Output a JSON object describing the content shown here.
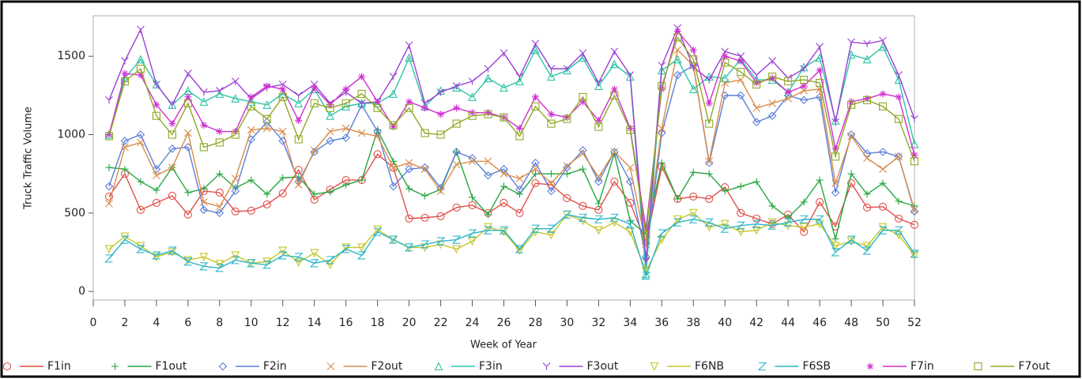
{
  "chart_data": {
    "type": "line",
    "x_label": "Week of Year",
    "y_label": "Truck Traffic Volume",
    "xlim": [
      0,
      52
    ],
    "xticks": [
      0,
      2,
      4,
      6,
      8,
      10,
      12,
      14,
      16,
      18,
      20,
      22,
      24,
      26,
      28,
      30,
      32,
      34,
      36,
      38,
      40,
      42,
      44,
      46,
      48,
      50,
      52
    ],
    "ylim": [
      -55,
      1758
    ],
    "yticks": [
      0,
      500,
      1000,
      1500
    ],
    "x": [
      1,
      2,
      3,
      4,
      5,
      6,
      7,
      8,
      9,
      10,
      11,
      12,
      13,
      14,
      15,
      16,
      17,
      18,
      19,
      20,
      21,
      22,
      23,
      24,
      25,
      26,
      27,
      28,
      29,
      30,
      31,
      32,
      33,
      34,
      35,
      36,
      37,
      38,
      39,
      40,
      41,
      42,
      43,
      44,
      45,
      46,
      47,
      48,
      49,
      50,
      51,
      52
    ],
    "legend": "bottom",
    "series": [
      {
        "name": "F1in",
        "color": "#e0504a",
        "marker": "circle",
        "values": [
          605,
          750,
          520,
          565,
          610,
          490,
          640,
          630,
          510,
          515,
          555,
          625,
          775,
          585,
          650,
          710,
          710,
          875,
          790,
          465,
          470,
          480,
          535,
          550,
          500,
          565,
          500,
          690,
          680,
          595,
          545,
          520,
          700,
          565,
          310,
          795,
          590,
          605,
          590,
          665,
          500,
          465,
          430,
          490,
          380,
          570,
          415,
          690,
          535,
          540,
          465,
          425
        ]
      },
      {
        "name": "F1out",
        "color": "#27a63f",
        "marker": "plus",
        "values": [
          790,
          780,
          700,
          645,
          790,
          630,
          655,
          750,
          660,
          710,
          620,
          725,
          730,
          620,
          635,
          680,
          710,
          1030,
          830,
          655,
          610,
          650,
          890,
          600,
          490,
          670,
          620,
          750,
          750,
          750,
          780,
          560,
          880,
          450,
          365,
          820,
          590,
          760,
          750,
          640,
          670,
          700,
          545,
          470,
          570,
          710,
          335,
          750,
          620,
          690,
          575,
          545
        ]
      },
      {
        "name": "F2in",
        "color": "#5b7fd8",
        "marker": "diamond",
        "values": [
          670,
          960,
          1000,
          780,
          910,
          920,
          520,
          500,
          640,
          970,
          1080,
          960,
          700,
          890,
          960,
          980,
          1190,
          1020,
          670,
          780,
          790,
          660,
          890,
          850,
          740,
          780,
          650,
          820,
          640,
          790,
          900,
          700,
          890,
          700,
          220,
          1010,
          1380,
          1440,
          820,
          1250,
          1250,
          1080,
          1120,
          1250,
          1220,
          1240,
          630,
          1000,
          880,
          890,
          860,
          510
        ]
      },
      {
        "name": "F2out",
        "color": "#d98c4a",
        "marker": "x",
        "values": [
          560,
          920,
          950,
          740,
          790,
          1010,
          570,
          540,
          720,
          1030,
          1040,
          1020,
          680,
          900,
          1020,
          1040,
          1010,
          990,
          790,
          820,
          780,
          640,
          810,
          830,
          830,
          750,
          720,
          780,
          690,
          800,
          880,
          730,
          890,
          790,
          300,
          1040,
          1540,
          1440,
          830,
          1330,
          1350,
          1170,
          1200,
          1230,
          1280,
          1290,
          690,
          990,
          850,
          780,
          860,
          520
        ]
      },
      {
        "name": "F3in",
        "color": "#2ec4a5",
        "marker": "triangle",
        "values": [
          1000,
          1360,
          1480,
          1320,
          1190,
          1280,
          1210,
          1260,
          1230,
          1210,
          1190,
          1260,
          1200,
          1290,
          1120,
          1180,
          1200,
          1200,
          1260,
          1490,
          1180,
          1280,
          1300,
          1240,
          1360,
          1300,
          1340,
          1540,
          1370,
          1410,
          1490,
          1310,
          1450,
          1370,
          110,
          1410,
          1480,
          1290,
          1370,
          1360,
          1480,
          1350,
          1350,
          1270,
          1430,
          1490,
          1090,
          1510,
          1480,
          1560,
          1350,
          940
        ]
      },
      {
        "name": "F3out",
        "color": "#9b3fd6",
        "marker": "y",
        "values": [
          1220,
          1470,
          1670,
          1320,
          1190,
          1390,
          1270,
          1280,
          1340,
          1230,
          1300,
          1320,
          1250,
          1320,
          1200,
          1270,
          1200,
          1210,
          1370,
          1570,
          1200,
          1270,
          1310,
          1340,
          1420,
          1520,
          1370,
          1580,
          1420,
          1420,
          1520,
          1330,
          1530,
          1380,
          190,
          1440,
          1680,
          1430,
          1350,
          1530,
          1500,
          1380,
          1470,
          1360,
          1420,
          1560,
          1080,
          1590,
          1580,
          1600,
          1380,
          1100
        ]
      },
      {
        "name": "F6NB",
        "color": "#c6c62a",
        "marker": "tridown",
        "values": [
          270,
          350,
          290,
          220,
          250,
          200,
          220,
          175,
          230,
          180,
          190,
          260,
          185,
          245,
          170,
          280,
          280,
          395,
          330,
          280,
          280,
          300,
          270,
          320,
          410,
          380,
          260,
          380,
          360,
          490,
          450,
          390,
          440,
          380,
          130,
          330,
          460,
          500,
          410,
          430,
          380,
          390,
          440,
          420,
          410,
          430,
          290,
          320,
          290,
          410,
          360,
          230
        ]
      },
      {
        "name": "F6SB",
        "color": "#2ab5c9",
        "marker": "z",
        "values": [
          210,
          330,
          270,
          230,
          260,
          190,
          160,
          150,
          200,
          180,
          170,
          230,
          220,
          180,
          200,
          270,
          230,
          380,
          330,
          280,
          300,
          320,
          330,
          370,
          390,
          390,
          270,
          400,
          400,
          490,
          470,
          460,
          470,
          430,
          100,
          370,
          440,
          460,
          440,
          400,
          420,
          430,
          420,
          440,
          460,
          460,
          250,
          330,
          260,
          390,
          390,
          240
        ]
      },
      {
        "name": "F7in",
        "color": "#d12fd1",
        "marker": "star",
        "values": [
          1000,
          1390,
          1380,
          1190,
          1070,
          1240,
          1060,
          1020,
          1020,
          1240,
          1310,
          1290,
          1090,
          1300,
          1190,
          1290,
          1370,
          1210,
          1050,
          1210,
          1170,
          1130,
          1170,
          1140,
          1140,
          1110,
          1040,
          1240,
          1130,
          1110,
          1210,
          1090,
          1290,
          1040,
          400,
          1290,
          1660,
          1540,
          1200,
          1500,
          1470,
          1330,
          1360,
          1270,
          1310,
          1410,
          910,
          1210,
          1230,
          1260,
          1240,
          870
        ]
      },
      {
        "name": "F7out",
        "color": "#8fa825",
        "marker": "square",
        "values": [
          990,
          1340,
          1420,
          1120,
          1000,
          1200,
          920,
          950,
          1000,
          1180,
          1100,
          1240,
          970,
          1200,
          1170,
          1200,
          1260,
          1170,
          1060,
          1170,
          1010,
          1000,
          1070,
          1120,
          1130,
          1110,
          990,
          1180,
          1070,
          1100,
          1240,
          1050,
          1250,
          1030,
          360,
          1310,
          1620,
          1480,
          1070,
          1460,
          1400,
          1320,
          1370,
          1340,
          1350,
          1330,
          860,
          1190,
          1220,
          1180,
          1100,
          830
        ]
      }
    ]
  }
}
